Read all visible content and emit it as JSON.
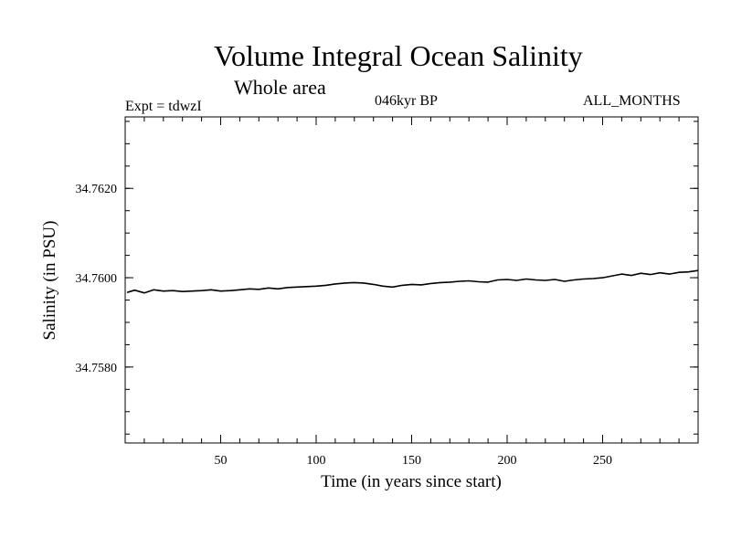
{
  "header": {
    "title": "Volume Integral Ocean Salinity",
    "subtitle": "Whole area",
    "experiment": "Expt = tdwzI",
    "period": "046kyr BP",
    "months": "ALL_MONTHS"
  },
  "chart_data": {
    "type": "line",
    "xlabel": "Time (in years since start)",
    "ylabel": "Salinity (in PSU)",
    "xlim": [
      0,
      300
    ],
    "ylim": [
      34.7563,
      34.7636
    ],
    "x_ticks": [
      50,
      100,
      150,
      200,
      250
    ],
    "x_tick_labels": [
      "50",
      "100",
      "150",
      "200",
      "250"
    ],
    "y_ticks": [
      34.758,
      34.76,
      34.762
    ],
    "y_tick_labels": [
      "34.7580",
      "34.7600",
      "34.7620"
    ],
    "x_minor_step": 10,
    "y_minor_step": 0.0005,
    "grid": false,
    "series": [
      {
        "color": "#000000",
        "x": [
          1,
          5,
          10,
          15,
          20,
          25,
          30,
          35,
          40,
          45,
          50,
          55,
          60,
          65,
          70,
          75,
          80,
          85,
          90,
          95,
          100,
          105,
          110,
          115,
          120,
          125,
          130,
          135,
          140,
          145,
          150,
          155,
          160,
          165,
          170,
          175,
          180,
          185,
          190,
          195,
          200,
          205,
          210,
          215,
          220,
          225,
          230,
          235,
          240,
          245,
          250,
          255,
          260,
          265,
          270,
          275,
          280,
          285,
          290,
          295,
          300
        ],
        "values": [
          34.75967,
          34.75972,
          34.75966,
          34.75973,
          34.7597,
          34.75971,
          34.75969,
          34.7597,
          34.75971,
          34.75973,
          34.7597,
          34.75971,
          34.75973,
          34.75975,
          34.75974,
          34.75977,
          34.75975,
          34.75978,
          34.75979,
          34.7598,
          34.75981,
          34.75983,
          34.75986,
          34.75988,
          34.75989,
          34.75988,
          34.75985,
          34.75981,
          34.75979,
          34.75983,
          34.75985,
          34.75984,
          34.75987,
          34.75989,
          34.7599,
          34.75992,
          34.75993,
          34.75991,
          34.7599,
          34.75995,
          34.75996,
          34.75994,
          34.75997,
          34.75995,
          34.75994,
          34.75996,
          34.75992,
          34.75995,
          34.75997,
          34.75998,
          34.76,
          34.76004,
          34.76008,
          34.76005,
          34.7601,
          34.76007,
          34.76011,
          34.76008,
          34.76012,
          34.76013,
          34.76016
        ]
      }
    ]
  }
}
